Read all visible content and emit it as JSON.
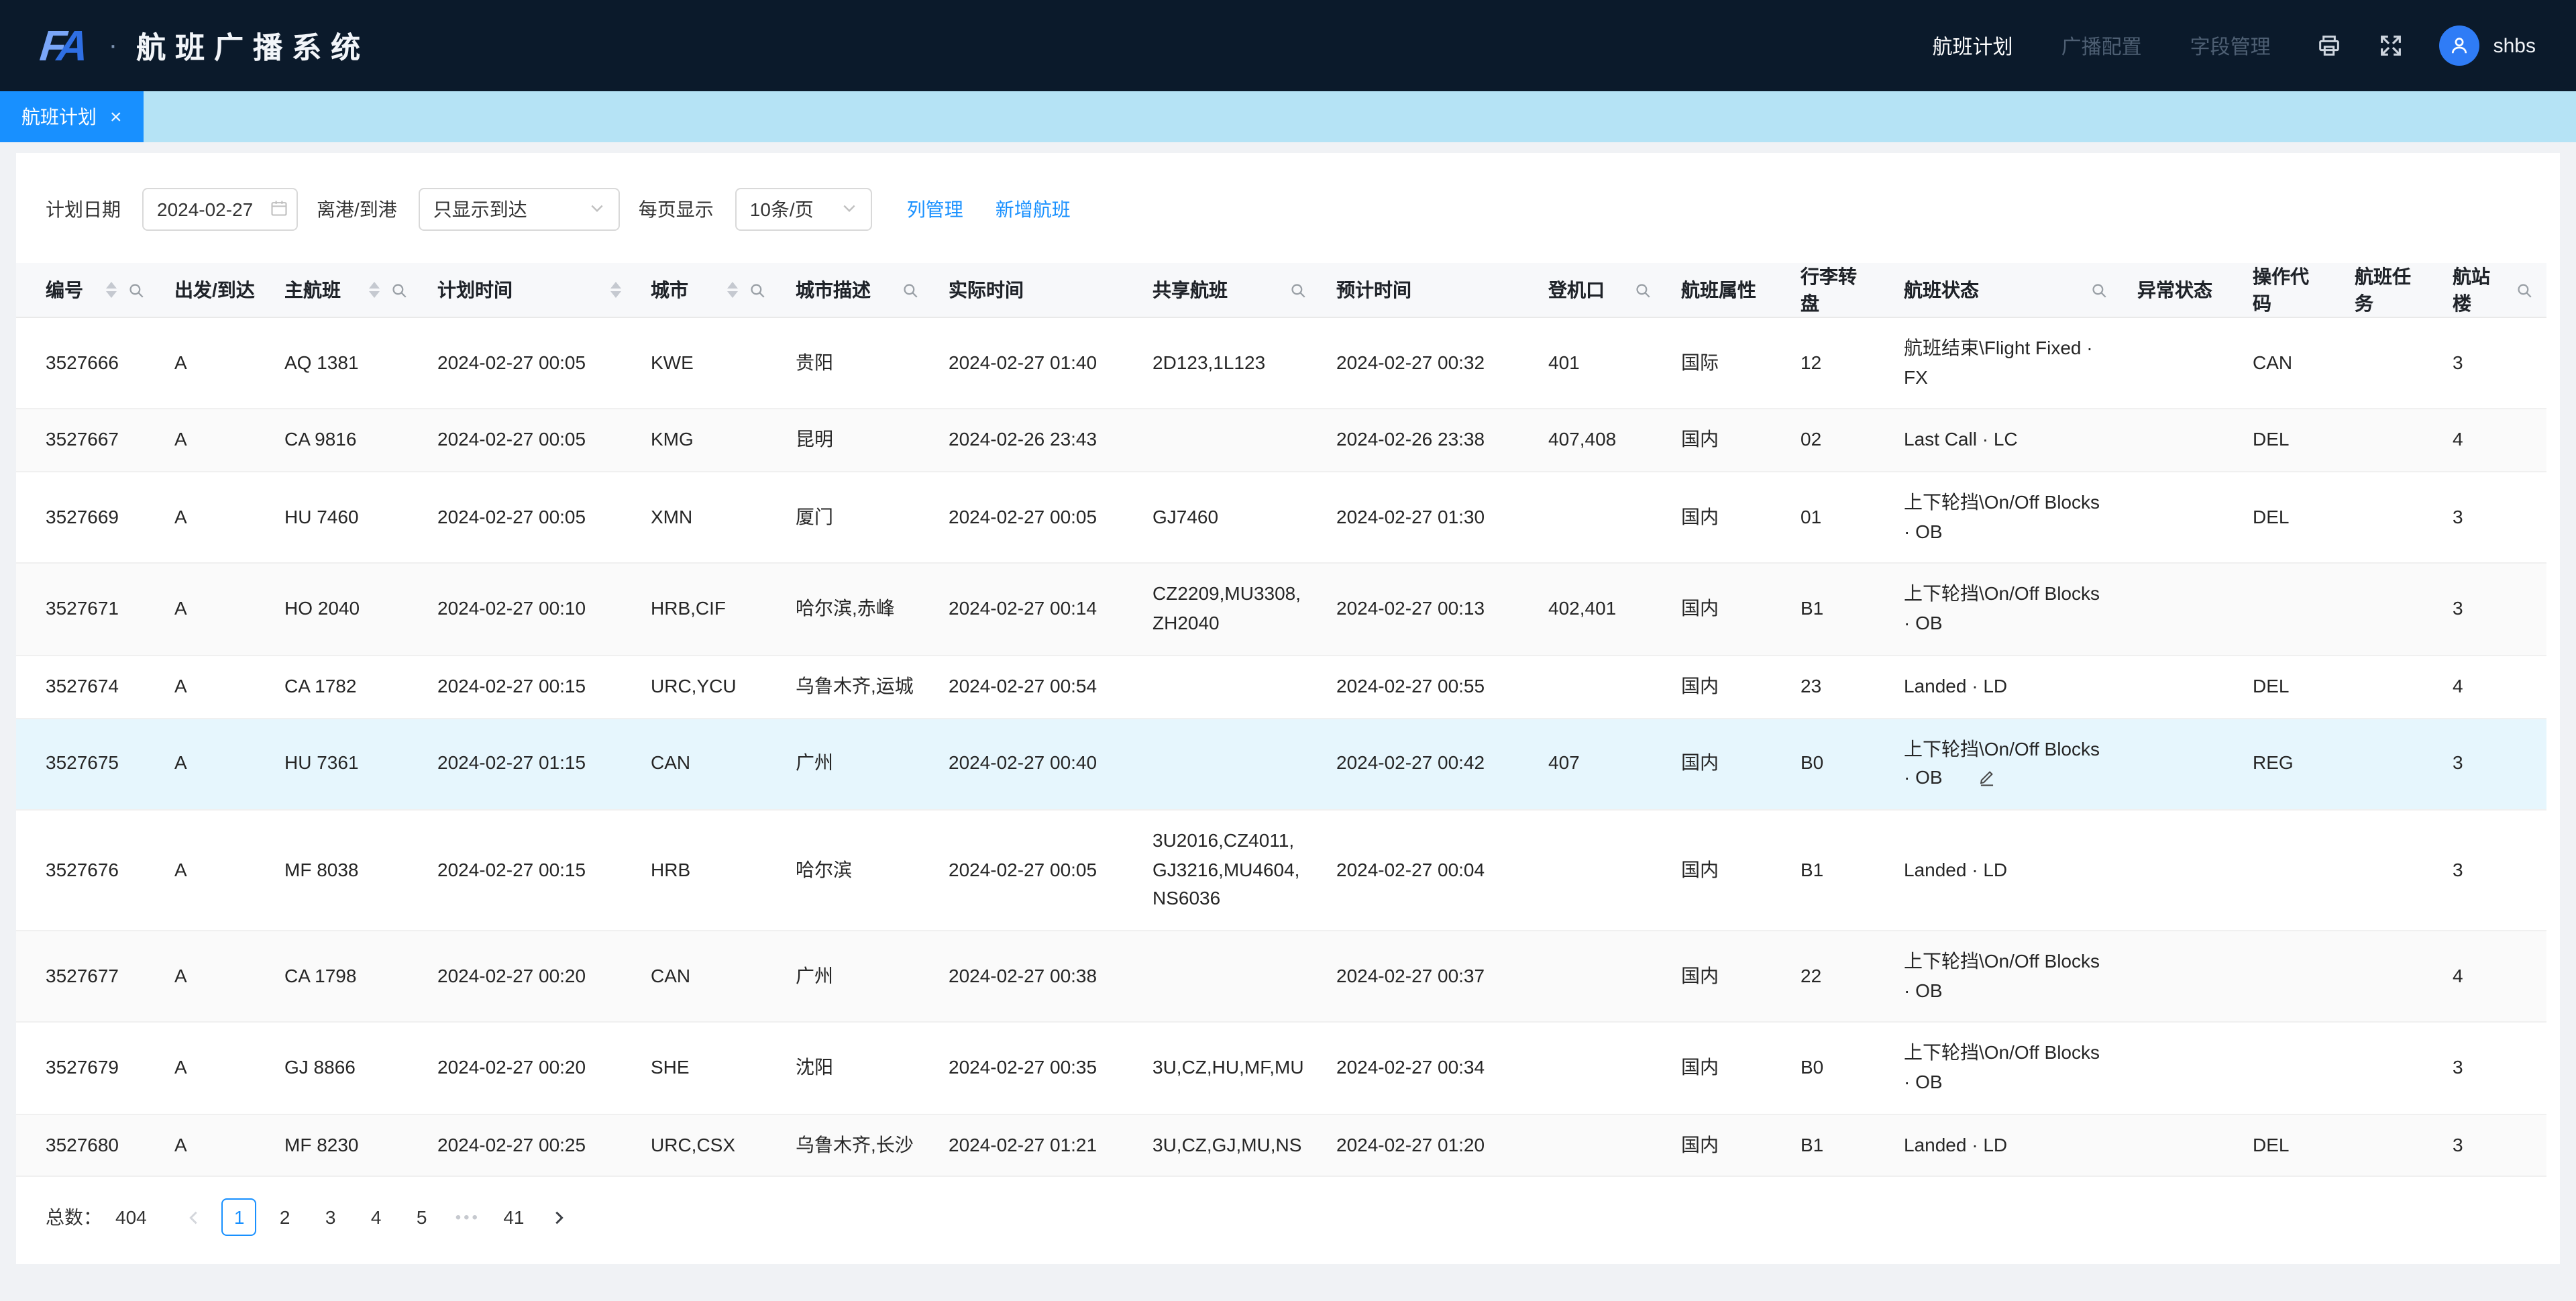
{
  "colors": {
    "accent": "#1890ff",
    "header_bg": "#0b1a2b",
    "tabbar_bg": "#b5e3f5",
    "row_highlight": "#e6f6fd"
  },
  "header": {
    "logo_text": "FA",
    "separator": "·",
    "app_title": "航班广播系统",
    "nav": [
      {
        "label": "航班计划",
        "active": true
      },
      {
        "label": "广播配置",
        "active": false
      },
      {
        "label": "字段管理",
        "active": false
      }
    ],
    "username": "shbs"
  },
  "tabs": [
    {
      "label": "航班计划",
      "close": "×",
      "active": true
    }
  ],
  "filters": {
    "date_label": "计划日期",
    "date_value": "2024-02-27",
    "direction_label": "离港/到港",
    "direction_value": "只显示到达",
    "pagesize_label": "每页显示",
    "pagesize_value": "10条/页",
    "column_mgmt_link": "列管理",
    "add_flight_link": "新增航班"
  },
  "table": {
    "columns": [
      {
        "key": "id",
        "label": "编号",
        "sort": true,
        "search": true
      },
      {
        "key": "direction",
        "label": "出发/到达",
        "sort": false,
        "search": false
      },
      {
        "key": "main_flight",
        "label": "主航班",
        "sort": true,
        "search": true
      },
      {
        "key": "plan_time",
        "label": "计划时间",
        "sort": true,
        "search": false
      },
      {
        "key": "city",
        "label": "城市",
        "sort": true,
        "search": true
      },
      {
        "key": "city_desc",
        "label": "城市描述",
        "sort": false,
        "search": true
      },
      {
        "key": "actual_time",
        "label": "实际时间",
        "sort": false,
        "search": false
      },
      {
        "key": "shared_flights",
        "label": "共享航班",
        "sort": false,
        "search": true
      },
      {
        "key": "est_time",
        "label": "预计时间",
        "sort": false,
        "search": false
      },
      {
        "key": "gate",
        "label": "登机口",
        "sort": false,
        "search": true
      },
      {
        "key": "property",
        "label": "航班属性",
        "sort": false,
        "search": false
      },
      {
        "key": "baggage",
        "label": "行李转盘",
        "sort": false,
        "search": false
      },
      {
        "key": "status",
        "label": "航班状态",
        "sort": false,
        "search": true
      },
      {
        "key": "abnormal",
        "label": "异常状态",
        "sort": false,
        "search": false
      },
      {
        "key": "op_code",
        "label": "操作代码",
        "sort": false,
        "search": false
      },
      {
        "key": "task",
        "label": "航班任务",
        "sort": false,
        "search": false
      },
      {
        "key": "terminal",
        "label": "航站楼",
        "sort": false,
        "search": true
      }
    ],
    "rows": [
      [
        "3527666",
        "A",
        "AQ 1381",
        "2024-02-27 00:05",
        "KWE",
        "贵阳",
        "2024-02-27 01:40",
        "2D123,1L123",
        "2024-02-27 00:32",
        "401",
        "国际",
        "12",
        "航班结束\\Flight Fixed · FX",
        "",
        "CAN",
        "",
        "3"
      ],
      [
        "3527667",
        "A",
        "CA 9816",
        "2024-02-27 00:05",
        "KMG",
        "昆明",
        "2024-02-26 23:43",
        "",
        "2024-02-26 23:38",
        "407,408",
        "国内",
        "02",
        "Last Call · LC",
        "",
        "DEL",
        "",
        "4"
      ],
      [
        "3527669",
        "A",
        "HU 7460",
        "2024-02-27 00:05",
        "XMN",
        "厦门",
        "2024-02-27 00:05",
        "GJ7460",
        "2024-02-27 01:30",
        "",
        "国内",
        "01",
        "上下轮挡\\On/Off Blocks · OB",
        "",
        "DEL",
        "",
        "3"
      ],
      [
        "3527671",
        "A",
        "HO 2040",
        "2024-02-27 00:10",
        "HRB,CIF",
        "哈尔滨,赤峰",
        "2024-02-27 00:14",
        "CZ2209,MU3308,ZH2040",
        "2024-02-27 00:13",
        "402,401",
        "国内",
        "B1",
        "上下轮挡\\On/Off Blocks · OB",
        "",
        "",
        "",
        "3"
      ],
      [
        "3527674",
        "A",
        "CA 1782",
        "2024-02-27 00:15",
        "URC,YCU",
        "乌鲁木齐,运城",
        "2024-02-27 00:54",
        "",
        "2024-02-27 00:55",
        "",
        "国内",
        "23",
        "Landed · LD",
        "",
        "DEL",
        "",
        "4"
      ],
      [
        "3527675",
        "A",
        "HU 7361",
        "2024-02-27 01:15",
        "CAN",
        "广州",
        "2024-02-27 00:40",
        "",
        "2024-02-27 00:42",
        "407",
        "国内",
        "B0",
        "上下轮挡\\On/Off Blocks · OB",
        "",
        "REG",
        "",
        "3"
      ],
      [
        "3527676",
        "A",
        "MF 8038",
        "2024-02-27 00:15",
        "HRB",
        "哈尔滨",
        "2024-02-27 00:05",
        "3U2016,CZ4011,GJ3216,MU4604,NS6036",
        "2024-02-27 00:04",
        "",
        "国内",
        "B1",
        "Landed · LD",
        "",
        "",
        "",
        "3"
      ],
      [
        "3527677",
        "A",
        "CA 1798",
        "2024-02-27 00:20",
        "CAN",
        "广州",
        "2024-02-27 00:38",
        "",
        "2024-02-27 00:37",
        "",
        "国内",
        "22",
        "上下轮挡\\On/Off Blocks · OB",
        "",
        "",
        "",
        "4"
      ],
      [
        "3527679",
        "A",
        "GJ 8866",
        "2024-02-27 00:20",
        "SHE",
        "沈阳",
        "2024-02-27 00:35",
        "3U,CZ,HU,MF,MU",
        "2024-02-27 00:34",
        "",
        "国内",
        "B0",
        "上下轮挡\\On/Off Blocks · OB",
        "",
        "",
        "",
        "3"
      ],
      [
        "3527680",
        "A",
        "MF 8230",
        "2024-02-27 00:25",
        "URC,CSX",
        "乌鲁木齐,长沙",
        "2024-02-27 01:21",
        "3U,CZ,GJ,MU,NS",
        "2024-02-27 01:20",
        "",
        "国内",
        "B1",
        "Landed · LD",
        "",
        "DEL",
        "",
        "3"
      ]
    ],
    "highlighted_row": 5
  },
  "pagination": {
    "total_label": "总数：",
    "total": "404",
    "pages": [
      "1",
      "2",
      "3",
      "4",
      "5",
      "•••",
      "41"
    ],
    "active_page": "1"
  }
}
